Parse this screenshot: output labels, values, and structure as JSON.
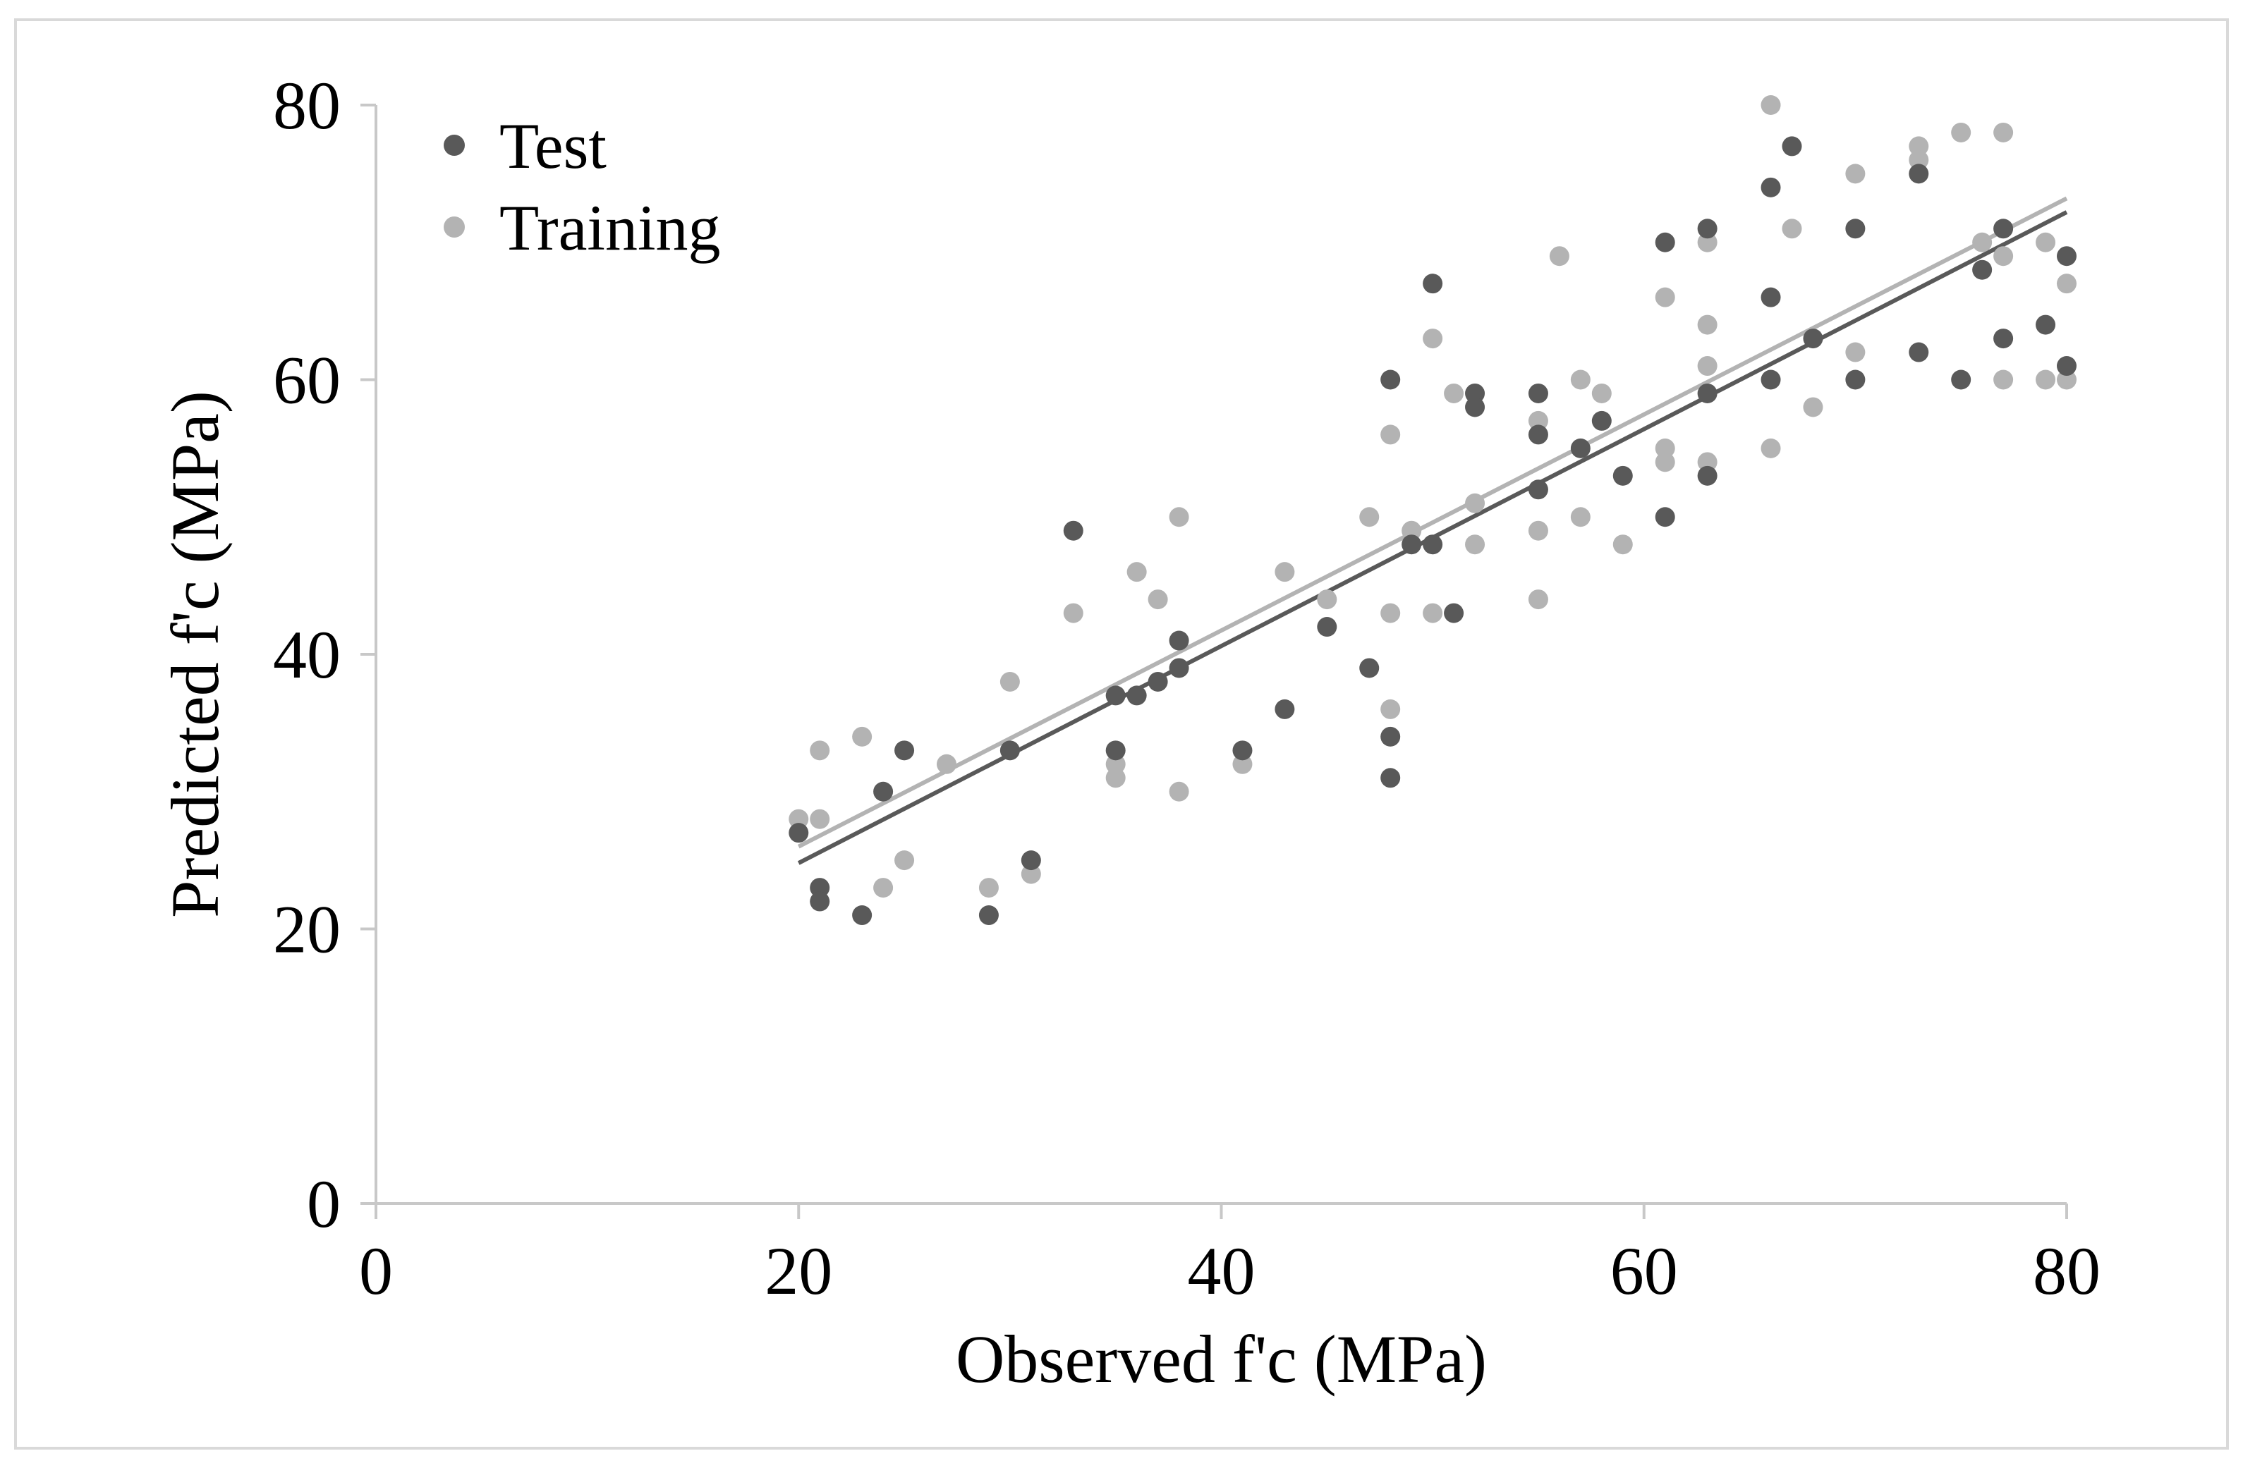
{
  "chart_data": {
    "type": "scatter",
    "title": "",
    "xlabel": "Observed f'c (MPa)",
    "ylabel": "Predicted f'c (MPa)",
    "xlim": [
      0,
      80
    ],
    "ylim": [
      0,
      80
    ],
    "xticks": [
      0,
      20,
      40,
      60,
      80
    ],
    "yticks": [
      0,
      20,
      40,
      60,
      80
    ],
    "grid": false,
    "legend_position": "top-left",
    "series": [
      {
        "name": "Test",
        "color": "#595959",
        "points": [
          [
            20,
            27
          ],
          [
            21,
            23
          ],
          [
            21,
            22
          ],
          [
            23,
            21
          ],
          [
            24,
            30
          ],
          [
            25,
            33
          ],
          [
            29,
            21
          ],
          [
            30,
            33
          ],
          [
            31,
            25
          ],
          [
            33,
            49
          ],
          [
            35,
            37
          ],
          [
            35,
            33
          ],
          [
            36,
            37
          ],
          [
            37,
            38
          ],
          [
            38,
            41
          ],
          [
            38,
            39
          ],
          [
            41,
            33
          ],
          [
            43,
            36
          ],
          [
            45,
            42
          ],
          [
            47,
            39
          ],
          [
            48,
            60
          ],
          [
            48,
            34
          ],
          [
            48,
            31
          ],
          [
            49,
            48
          ],
          [
            50,
            67
          ],
          [
            50,
            48
          ],
          [
            51,
            43
          ],
          [
            52,
            59
          ],
          [
            52,
            58
          ],
          [
            55,
            59
          ],
          [
            55,
            56
          ],
          [
            55,
            52
          ],
          [
            57,
            55
          ],
          [
            58,
            57
          ],
          [
            59,
            53
          ],
          [
            61,
            70
          ],
          [
            61,
            50
          ],
          [
            63,
            71
          ],
          [
            63,
            59
          ],
          [
            63,
            53
          ],
          [
            66,
            74
          ],
          [
            66,
            66
          ],
          [
            66,
            60
          ],
          [
            67,
            77
          ],
          [
            68,
            63
          ],
          [
            70,
            71
          ],
          [
            70,
            60
          ],
          [
            73,
            75
          ],
          [
            73,
            62
          ],
          [
            75,
            60
          ],
          [
            76,
            68
          ],
          [
            77,
            71
          ],
          [
            77,
            63
          ],
          [
            79,
            64
          ],
          [
            80,
            69
          ],
          [
            80,
            61
          ]
        ],
        "trendline": {
          "x": [
            20,
            80
          ],
          "y": [
            24.8,
            72.2
          ]
        }
      },
      {
        "name": "Training",
        "color": "#b3b3b3",
        "points": [
          [
            20,
            28
          ],
          [
            21,
            33
          ],
          [
            21,
            28
          ],
          [
            23,
            34
          ],
          [
            24,
            23
          ],
          [
            25,
            25
          ],
          [
            27,
            32
          ],
          [
            29,
            23
          ],
          [
            30,
            38
          ],
          [
            31,
            24
          ],
          [
            33,
            43
          ],
          [
            35,
            32
          ],
          [
            35,
            31
          ],
          [
            36,
            46
          ],
          [
            37,
            44
          ],
          [
            38,
            50
          ],
          [
            38,
            30
          ],
          [
            41,
            32
          ],
          [
            43,
            46
          ],
          [
            45,
            44
          ],
          [
            47,
            50
          ],
          [
            48,
            56
          ],
          [
            48,
            43
          ],
          [
            48,
            36
          ],
          [
            49,
            49
          ],
          [
            50,
            63
          ],
          [
            50,
            43
          ],
          [
            51,
            59
          ],
          [
            52,
            51
          ],
          [
            52,
            48
          ],
          [
            55,
            57
          ],
          [
            55,
            49
          ],
          [
            55,
            44
          ],
          [
            56,
            69
          ],
          [
            57,
            60
          ],
          [
            57,
            50
          ],
          [
            58,
            59
          ],
          [
            59,
            48
          ],
          [
            61,
            66
          ],
          [
            61,
            55
          ],
          [
            61,
            54
          ],
          [
            63,
            70
          ],
          [
            63,
            64
          ],
          [
            63,
            61
          ],
          [
            63,
            54
          ],
          [
            66,
            80
          ],
          [
            66,
            55
          ],
          [
            67,
            71
          ],
          [
            68,
            58
          ],
          [
            70,
            75
          ],
          [
            70,
            62
          ],
          [
            73,
            77
          ],
          [
            73,
            76
          ],
          [
            75,
            78
          ],
          [
            76,
            70
          ],
          [
            77,
            78
          ],
          [
            77,
            69
          ],
          [
            77,
            60
          ],
          [
            79,
            70
          ],
          [
            79,
            60
          ],
          [
            80,
            67
          ],
          [
            80,
            60
          ]
        ],
        "trendline": {
          "x": [
            20,
            80
          ],
          "y": [
            26.0,
            73.2
          ]
        }
      }
    ]
  }
}
